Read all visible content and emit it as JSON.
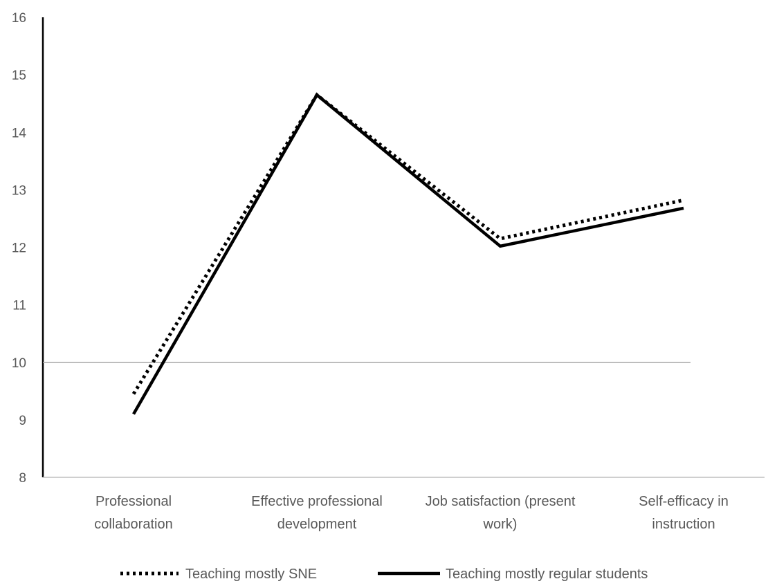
{
  "chart_data": {
    "type": "line",
    "title": "",
    "xlabel": "",
    "ylabel": "",
    "categories": [
      [
        "Professional",
        "collaboration"
      ],
      [
        "Effective professional",
        "development"
      ],
      [
        "Job satisfaction (present",
        "work)"
      ],
      [
        "Self-efficacy in",
        "instruction"
      ]
    ],
    "ylim": [
      8,
      16
    ],
    "yticks": [
      8,
      9,
      10,
      11,
      12,
      13,
      14,
      15,
      16
    ],
    "reference_line": 10,
    "grid": false,
    "legend_position": "bottom",
    "series": [
      {
        "name": "Teaching mostly SNE",
        "style": "dotted",
        "color": "#000000",
        "values": [
          9.45,
          14.65,
          12.15,
          12.82
        ]
      },
      {
        "name": "Teaching mostly regular students",
        "style": "solid",
        "color": "#000000",
        "values": [
          9.1,
          14.65,
          12.02,
          12.68
        ]
      }
    ]
  }
}
